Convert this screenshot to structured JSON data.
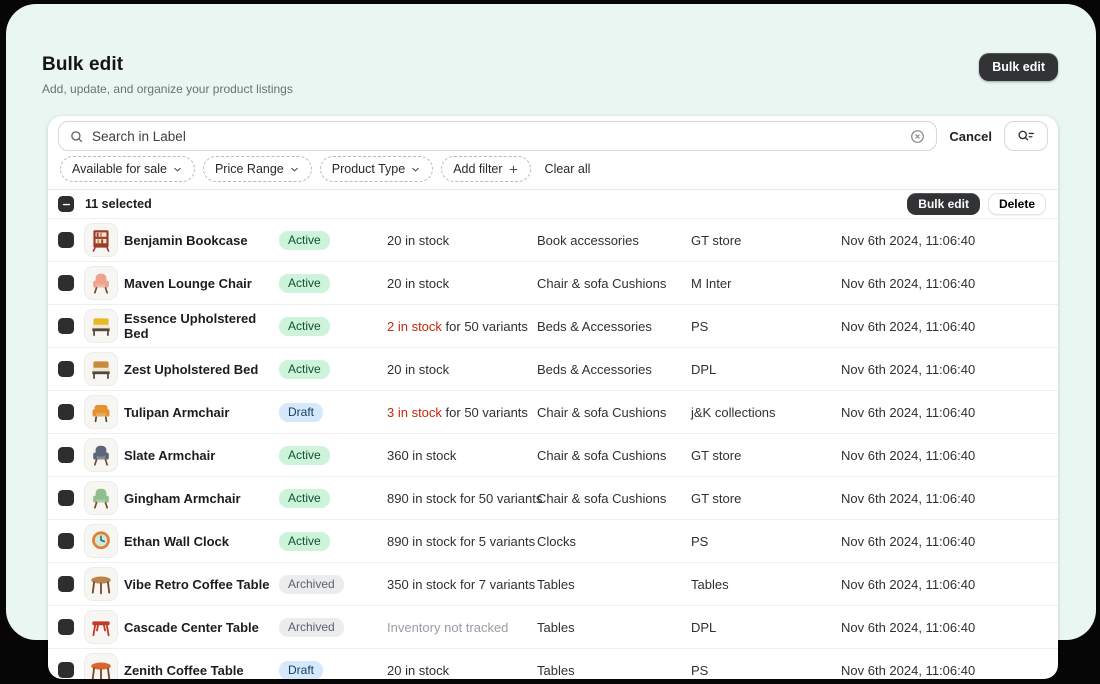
{
  "header": {
    "title": "Bulk edit",
    "subtitle": "Add, update, and organize your product listings",
    "bulk_edit_button": "Bulk edit"
  },
  "toolbar": {
    "search_placeholder": "Search in Label",
    "cancel_label": "Cancel"
  },
  "filters": {
    "chips": [
      "Available for sale",
      "Price Range",
      "Product Type"
    ],
    "add_filter_label": "Add filter",
    "clear_all_label": "Clear all"
  },
  "selection": {
    "count": "11 selected",
    "bulk_edit_label": "Bulk edit",
    "delete_label": "Delete"
  },
  "colors": {
    "background": "#e9f6f2",
    "backdrop": "#060606",
    "dark_button": "#323335",
    "delete_text": "#c5280c",
    "stock_alert": "#c5280c",
    "statuses": {
      "Active": {
        "bg": "#cdf3da",
        "text": "#124f33"
      },
      "Draft": {
        "bg": "#d6e8fb",
        "text": "#173f66"
      },
      "Archived": {
        "bg": "#ebecee",
        "text": "#5b626b"
      }
    }
  },
  "rows": [
    {
      "name": "Benjamin Bookcase",
      "status": "Active",
      "stock_alert": "",
      "stock": "20 in stock",
      "stock_muted": false,
      "category": "Book accessories",
      "vendor": "GT store",
      "updated": "Nov 6th 2024, 11:06:40",
      "thumb": {
        "type": "bookcase",
        "color": "#9c3b2a"
      }
    },
    {
      "name": "Maven Lounge Chair",
      "status": "Active",
      "stock_alert": "",
      "stock": "20 in stock",
      "stock_muted": false,
      "category": "Chair & sofa Cushions",
      "vendor": "M Inter",
      "updated": "Nov 6th 2024, 11:06:40",
      "thumb": {
        "type": "chair",
        "color": "#efa28d"
      }
    },
    {
      "name": "Essence Upholstered Bed",
      "status": "Active",
      "stock_alert": "2 in stock",
      "stock": " for 50 variants",
      "stock_muted": false,
      "category": "Beds & Accessories",
      "vendor": "PS",
      "updated": "Nov 6th 2024, 11:06:40",
      "thumb": {
        "type": "bed",
        "color": "#e9b824"
      }
    },
    {
      "name": "Zest Upholstered Bed",
      "status": "Active",
      "stock_alert": "",
      "stock": "20 in stock",
      "stock_muted": false,
      "category": "Beds & Accessories",
      "vendor": "DPL",
      "updated": "Nov 6th 2024, 11:06:40",
      "thumb": {
        "type": "bed",
        "color": "#c98a3b"
      }
    },
    {
      "name": "Tulipan Armchair",
      "status": "Draft",
      "stock_alert": "3 in stock",
      "stock": " for 50 variants",
      "stock_muted": false,
      "category": "Chair & sofa Cushions",
      "vendor": "j&K collections",
      "updated": "Nov 6th 2024, 11:06:40",
      "thumb": {
        "type": "sofa",
        "color": "#e6912f"
      }
    },
    {
      "name": "Slate Armchair",
      "status": "Active",
      "stock_alert": "",
      "stock": "360 in stock",
      "stock_muted": false,
      "category": "Chair & sofa Cushions",
      "vendor": "GT store",
      "updated": "Nov 6th 2024, 11:06:40",
      "thumb": {
        "type": "chair",
        "color": "#5d6579"
      }
    },
    {
      "name": "Gingham Armchair",
      "status": "Active",
      "stock_alert": "",
      "stock": "890 in stock for 50 variants",
      "stock_muted": false,
      "category": "Chair & sofa Cushions",
      "vendor": "GT store",
      "updated": "Nov 6th 2024, 11:06:40",
      "thumb": {
        "type": "chair",
        "color": "#8fbf8f"
      }
    },
    {
      "name": "Ethan Wall Clock",
      "status": "Active",
      "stock_alert": "",
      "stock": "890 in stock for 5 variants",
      "stock_muted": false,
      "category": "Clocks",
      "vendor": "PS",
      "updated": "Nov 6th 2024, 11:06:40",
      "thumb": {
        "type": "clock",
        "color": "#e2802f"
      }
    },
    {
      "name": "Vibe Retro Coffee Table",
      "status": "Archived",
      "stock_alert": "",
      "stock": "350 in stock for 7 variants",
      "stock_muted": false,
      "category": "Tables",
      "vendor": "Tables",
      "updated": "Nov 6th 2024, 11:06:40",
      "thumb": {
        "type": "table-round",
        "color": "#b9854d"
      }
    },
    {
      "name": "Cascade Center Table",
      "status": "Archived",
      "stock_alert": "",
      "stock": "Inventory not tracked",
      "stock_muted": true,
      "category": "Tables",
      "vendor": "DPL",
      "updated": "Nov 6th 2024, 11:06:40",
      "thumb": {
        "type": "table-rect",
        "color": "#c23b2a"
      }
    },
    {
      "name": "Zenith Coffee Table",
      "status": "Draft",
      "stock_alert": "",
      "stock": "20 in stock",
      "stock_muted": false,
      "category": "Tables",
      "vendor": "PS",
      "updated": "Nov 6th 2024, 11:06:40",
      "thumb": {
        "type": "table-round",
        "color": "#d9662b"
      }
    }
  ]
}
